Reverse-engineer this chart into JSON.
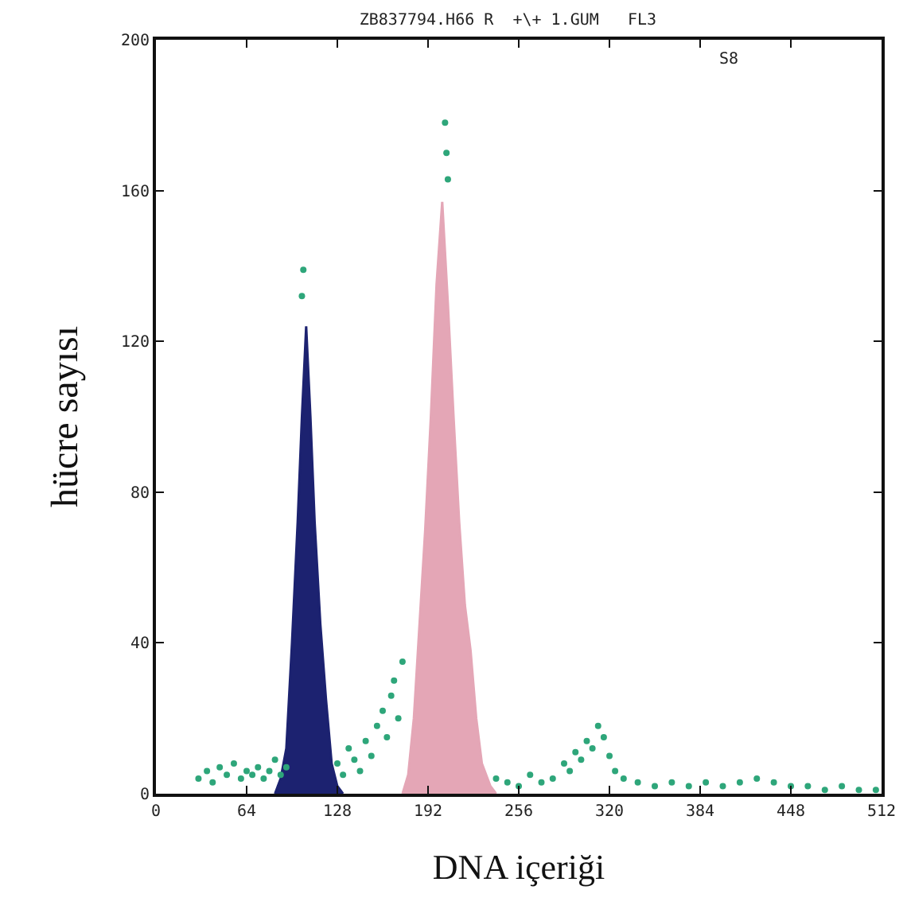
{
  "chart_data": {
    "type": "area",
    "title": "ZB837794.H66 R  +\\+ 1.GUM   FL3",
    "xlabel": "DNA içeriği",
    "ylabel": "hücre sayısı",
    "annotations": [
      "S8"
    ],
    "xlim": [
      0,
      512
    ],
    "xticks": [
      0,
      64,
      128,
      192,
      256,
      320,
      384,
      448,
      512
    ],
    "ylim": [
      0,
      200
    ],
    "yticks": [
      0,
      40,
      80,
      120,
      160,
      200
    ],
    "series": [
      {
        "color": "#1c2270",
        "x": [
          84,
          88,
          92,
          96,
          100,
          103,
          106,
          109,
          112,
          116,
          120,
          124,
          128,
          132
        ],
        "values": [
          0,
          4,
          12,
          40,
          72,
          100,
          124,
          100,
          72,
          45,
          25,
          8,
          2,
          0
        ]
      },
      {
        "color": "#e4a6b6",
        "x": [
          174,
          178,
          182,
          186,
          190,
          194,
          198,
          202,
          206,
          210,
          214,
          218,
          222,
          226,
          230,
          236,
          240
        ],
        "values": [
          0,
          5,
          20,
          45,
          70,
          100,
          135,
          157,
          130,
          100,
          72,
          50,
          38,
          20,
          8,
          2,
          0
        ]
      },
      {
        "type": "scatter",
        "marker": "circle",
        "color": "#2ea67a",
        "x": [
          30,
          36,
          40,
          45,
          50,
          55,
          60,
          64,
          68,
          72,
          76,
          80,
          84,
          88,
          92,
          128,
          132,
          136,
          140,
          144,
          148,
          152,
          156,
          160,
          163,
          166,
          168,
          171,
          174,
          104,
          103,
          204,
          205,
          206,
          240,
          248,
          256,
          264,
          272,
          280,
          288,
          292,
          296,
          300,
          304,
          308,
          312,
          316,
          320,
          324,
          330,
          340,
          352,
          364,
          376,
          388,
          400,
          412,
          424,
          436,
          448,
          460,
          472,
          484,
          496,
          508
        ],
        "values": [
          4,
          6,
          3,
          7,
          5,
          8,
          4,
          6,
          5,
          7,
          4,
          6,
          9,
          5,
          7,
          8,
          5,
          12,
          9,
          6,
          14,
          10,
          18,
          22,
          15,
          26,
          30,
          20,
          35,
          139,
          132,
          178,
          170,
          163,
          4,
          3,
          2,
          5,
          3,
          4,
          8,
          6,
          11,
          9,
          14,
          12,
          18,
          15,
          10,
          6,
          4,
          3,
          2,
          3,
          2,
          3,
          2,
          3,
          4,
          3,
          2,
          2,
          1,
          2,
          1,
          1
        ]
      }
    ]
  }
}
